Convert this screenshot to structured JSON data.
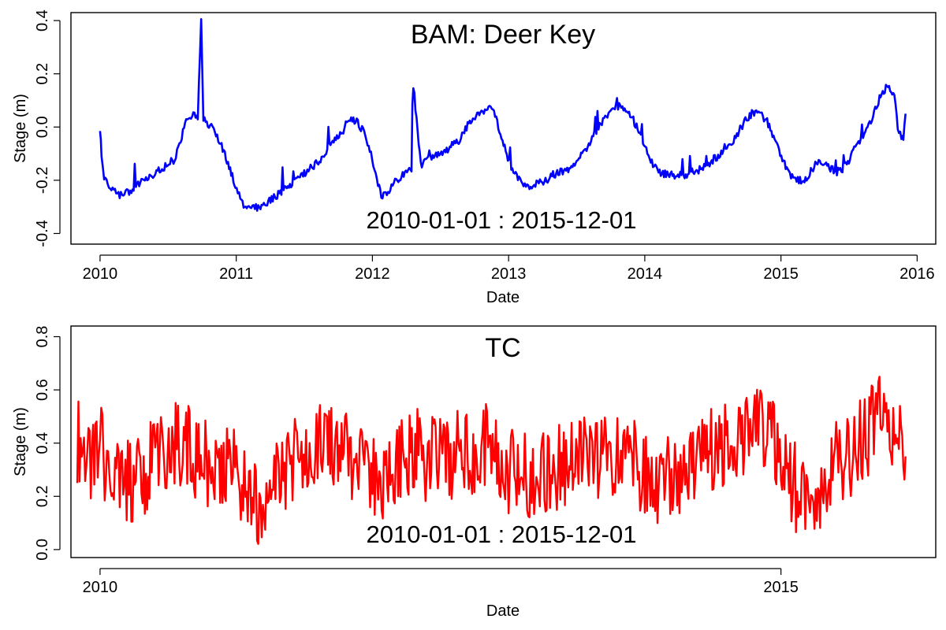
{
  "chart_data": [
    {
      "type": "line",
      "title": "BAM: Deer Key",
      "annotation": "2010-01-01  :  2015-12-01",
      "xlabel": "Date",
      "ylabel": "Stage (m)",
      "x_ticks": [
        "2010",
        "2011",
        "2012",
        "2013",
        "2014",
        "2015",
        "2016"
      ],
      "y_ticks": [
        "-0.4",
        "-0.2",
        "0.0",
        "0.2",
        "0.4"
      ],
      "xlim": [
        "2009-10-15",
        "2016-02-20"
      ],
      "ylim": [
        -0.44,
        0.43
      ],
      "color": "#0000ff",
      "series": [
        {
          "x": [
            "2010-01-01",
            "2010-01-05",
            "2010-01-12",
            "2010-01-25",
            "2010-02-10",
            "2010-03-01",
            "2010-03-20",
            "2010-04-10",
            "2010-05-01",
            "2010-05-20",
            "2010-06-10",
            "2010-07-01",
            "2010-07-20",
            "2010-08-05",
            "2010-08-20",
            "2010-09-05",
            "2010-09-20",
            "2010-09-29",
            "2010-10-05",
            "2010-10-20",
            "2010-11-05",
            "2010-11-20",
            "2010-12-10",
            "2010-12-30",
            "2011-01-15",
            "2011-02-01",
            "2011-02-20",
            "2011-03-10",
            "2011-03-25",
            "2011-04-15",
            "2011-05-05",
            "2011-05-25",
            "2011-06-15",
            "2011-07-05",
            "2011-07-25",
            "2011-08-15",
            "2011-09-05",
            "2011-09-25",
            "2011-10-15",
            "2011-10-25",
            "2011-11-05",
            "2011-11-20",
            "2011-12-10",
            "2011-12-25",
            "2012-01-10",
            "2012-01-25",
            "2012-02-15",
            "2012-03-05",
            "2012-03-25",
            "2012-04-15",
            "2012-04-20",
            "2012-05-10",
            "2012-05-30",
            "2012-06-20",
            "2012-07-10",
            "2012-07-30",
            "2012-08-20",
            "2012-09-10",
            "2012-09-30",
            "2012-10-20",
            "2012-11-05",
            "2012-11-20",
            "2012-12-10",
            "2012-12-30",
            "2013-01-20",
            "2013-02-10",
            "2013-03-01",
            "2013-03-20",
            "2013-04-10",
            "2013-04-30",
            "2013-05-20",
            "2013-06-10",
            "2013-06-30",
            "2013-07-20",
            "2013-08-10",
            "2013-08-30",
            "2013-09-20",
            "2013-10-10",
            "2013-10-30",
            "2013-11-20",
            "2013-12-10",
            "2013-12-30",
            "2014-01-20",
            "2014-02-10",
            "2014-03-05",
            "2014-03-25",
            "2014-04-15",
            "2014-05-05",
            "2014-05-25",
            "2014-06-15",
            "2014-07-05",
            "2014-07-25",
            "2014-08-15",
            "2014-09-05",
            "2014-09-25",
            "2014-10-15",
            "2014-11-05",
            "2014-11-25",
            "2014-12-15",
            "2015-01-05",
            "2015-01-25",
            "2015-02-15",
            "2015-03-05",
            "2015-03-25",
            "2015-04-15",
            "2015-05-05",
            "2015-05-25",
            "2015-06-15",
            "2015-07-05",
            "2015-07-25",
            "2015-08-15",
            "2015-09-05",
            "2015-09-25",
            "2015-10-15",
            "2015-11-01",
            "2015-11-10",
            "2015-11-20",
            "2015-11-25",
            "2015-12-01"
          ],
          "y": [
            0.0,
            -0.12,
            -0.2,
            -0.22,
            -0.24,
            -0.26,
            -0.24,
            -0.22,
            -0.2,
            -0.18,
            -0.16,
            -0.14,
            -0.12,
            -0.05,
            0.02,
            0.05,
            0.04,
            0.4,
            0.03,
            0.01,
            -0.02,
            -0.06,
            -0.14,
            -0.22,
            -0.28,
            -0.31,
            -0.3,
            -0.3,
            -0.28,
            -0.26,
            -0.24,
            -0.22,
            -0.2,
            -0.17,
            -0.15,
            -0.12,
            -0.08,
            -0.04,
            -0.01,
            0.02,
            0.03,
            0.02,
            -0.02,
            -0.08,
            -0.18,
            -0.26,
            -0.24,
            -0.2,
            -0.18,
            -0.16,
            0.16,
            -0.14,
            -0.12,
            -0.1,
            -0.1,
            -0.07,
            -0.05,
            0.0,
            0.04,
            0.05,
            0.07,
            0.06,
            -0.02,
            -0.12,
            -0.18,
            -0.21,
            -0.22,
            -0.21,
            -0.2,
            -0.18,
            -0.17,
            -0.16,
            -0.13,
            -0.1,
            -0.05,
            0.0,
            0.04,
            0.07,
            0.08,
            0.06,
            0.0,
            -0.06,
            -0.13,
            -0.17,
            -0.18,
            -0.18,
            -0.18,
            -0.17,
            -0.16,
            -0.15,
            -0.12,
            -0.1,
            -0.07,
            -0.03,
            0.02,
            0.05,
            0.05,
            0.02,
            -0.04,
            -0.12,
            -0.18,
            -0.2,
            -0.2,
            -0.16,
            -0.12,
            -0.14,
            -0.17,
            -0.16,
            -0.12,
            -0.06,
            -0.02,
            0.04,
            0.12,
            0.16,
            0.12,
            0.0,
            -0.04,
            -0.05,
            0.05
          ]
        }
      ]
    },
    {
      "type": "line",
      "title": "TC",
      "annotation": "2010-01-01  :  2015-12-01",
      "xlabel": "Date",
      "ylabel": "Stage (m)",
      "x_ticks": [
        "2010",
        "2015"
      ],
      "y_ticks": [
        "0.0",
        "0.2",
        "0.4",
        "0.6",
        "0.8"
      ],
      "xlim": [
        "2009-10-15",
        "2016-02-20"
      ],
      "ylim": [
        -0.03,
        0.84
      ],
      "color": "#ff0000",
      "series": [
        {
          "x": [
            "2009-11-01",
            "2009-12-01",
            "2010-01-01",
            "2010-02-01",
            "2010-03-01",
            "2010-04-01",
            "2010-05-01",
            "2010-06-01",
            "2010-07-01",
            "2010-08-01",
            "2010-09-01",
            "2010-10-01",
            "2010-11-01",
            "2010-12-01",
            "2011-01-01",
            "2011-02-01",
            "2011-03-01",
            "2011-04-01",
            "2011-05-01",
            "2011-06-01",
            "2011-07-01",
            "2011-08-01",
            "2011-09-01",
            "2011-10-01",
            "2011-11-01",
            "2011-12-01",
            "2012-01-01",
            "2012-02-01",
            "2012-03-01",
            "2012-04-01",
            "2012-05-01",
            "2012-06-01",
            "2012-07-01",
            "2012-08-01",
            "2012-09-01",
            "2012-10-01",
            "2012-11-01",
            "2012-12-01",
            "2013-01-01",
            "2013-02-01",
            "2013-03-01",
            "2013-04-01",
            "2013-05-01",
            "2013-06-01",
            "2013-07-01",
            "2013-08-01",
            "2013-09-01",
            "2013-10-01",
            "2013-11-01",
            "2013-12-01",
            "2014-01-01",
            "2014-02-01",
            "2014-03-01",
            "2014-04-01",
            "2014-05-01",
            "2014-06-01",
            "2014-07-01",
            "2014-08-01",
            "2014-09-01",
            "2014-10-01",
            "2014-11-01",
            "2014-12-01",
            "2015-01-01",
            "2015-02-01",
            "2015-03-01",
            "2015-04-01",
            "2015-05-01",
            "2015-06-01",
            "2015-07-01",
            "2015-08-01",
            "2015-09-01",
            "2015-10-01",
            "2015-11-01",
            "2015-12-01"
          ],
          "y": [
            0.42,
            0.35,
            0.38,
            0.3,
            0.28,
            0.25,
            0.3,
            0.33,
            0.36,
            0.4,
            0.38,
            0.34,
            0.32,
            0.3,
            0.28,
            0.22,
            0.15,
            0.2,
            0.28,
            0.33,
            0.36,
            0.38,
            0.4,
            0.36,
            0.34,
            0.32,
            0.3,
            0.28,
            0.34,
            0.38,
            0.36,
            0.34,
            0.33,
            0.35,
            0.37,
            0.36,
            0.38,
            0.35,
            0.3,
            0.28,
            0.26,
            0.28,
            0.3,
            0.32,
            0.35,
            0.37,
            0.36,
            0.35,
            0.33,
            0.32,
            0.3,
            0.27,
            0.25,
            0.28,
            0.32,
            0.36,
            0.38,
            0.4,
            0.42,
            0.44,
            0.45,
            0.42,
            0.35,
            0.25,
            0.2,
            0.22,
            0.28,
            0.32,
            0.36,
            0.4,
            0.46,
            0.58,
            0.45,
            0.35
          ]
        }
      ]
    }
  ]
}
